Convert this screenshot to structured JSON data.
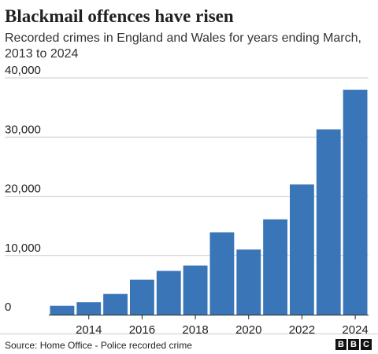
{
  "chart_data": {
    "type": "bar",
    "title": "Blackmail offences have risen",
    "subtitle": "Recorded crimes in England and Wales for years ending March, 2013 to 2024",
    "categories": [
      "2013",
      "2014",
      "2015",
      "2016",
      "2017",
      "2018",
      "2019",
      "2020",
      "2021",
      "2022",
      "2023",
      "2024"
    ],
    "values": [
      1500,
      2100,
      3500,
      5900,
      7400,
      8300,
      13900,
      11000,
      16100,
      22000,
      31300,
      38000
    ],
    "x_tick_labels": [
      "2014",
      "2016",
      "2018",
      "2020",
      "2022",
      "2024"
    ],
    "y_ticks": [
      0,
      10000,
      20000,
      30000,
      40000
    ],
    "y_tick_labels": [
      "0",
      "10,000",
      "20,000",
      "30,000",
      "40,000"
    ],
    "ylim": [
      0,
      40000
    ],
    "grid": "horizontal",
    "bar_color": "#3a75b8",
    "grid_color": "#cccccc",
    "xlabel": "",
    "ylabel": ""
  },
  "footer": {
    "source": "Source: Home Office - Police recorded crime",
    "logo_letters": [
      "B",
      "B",
      "C"
    ]
  }
}
